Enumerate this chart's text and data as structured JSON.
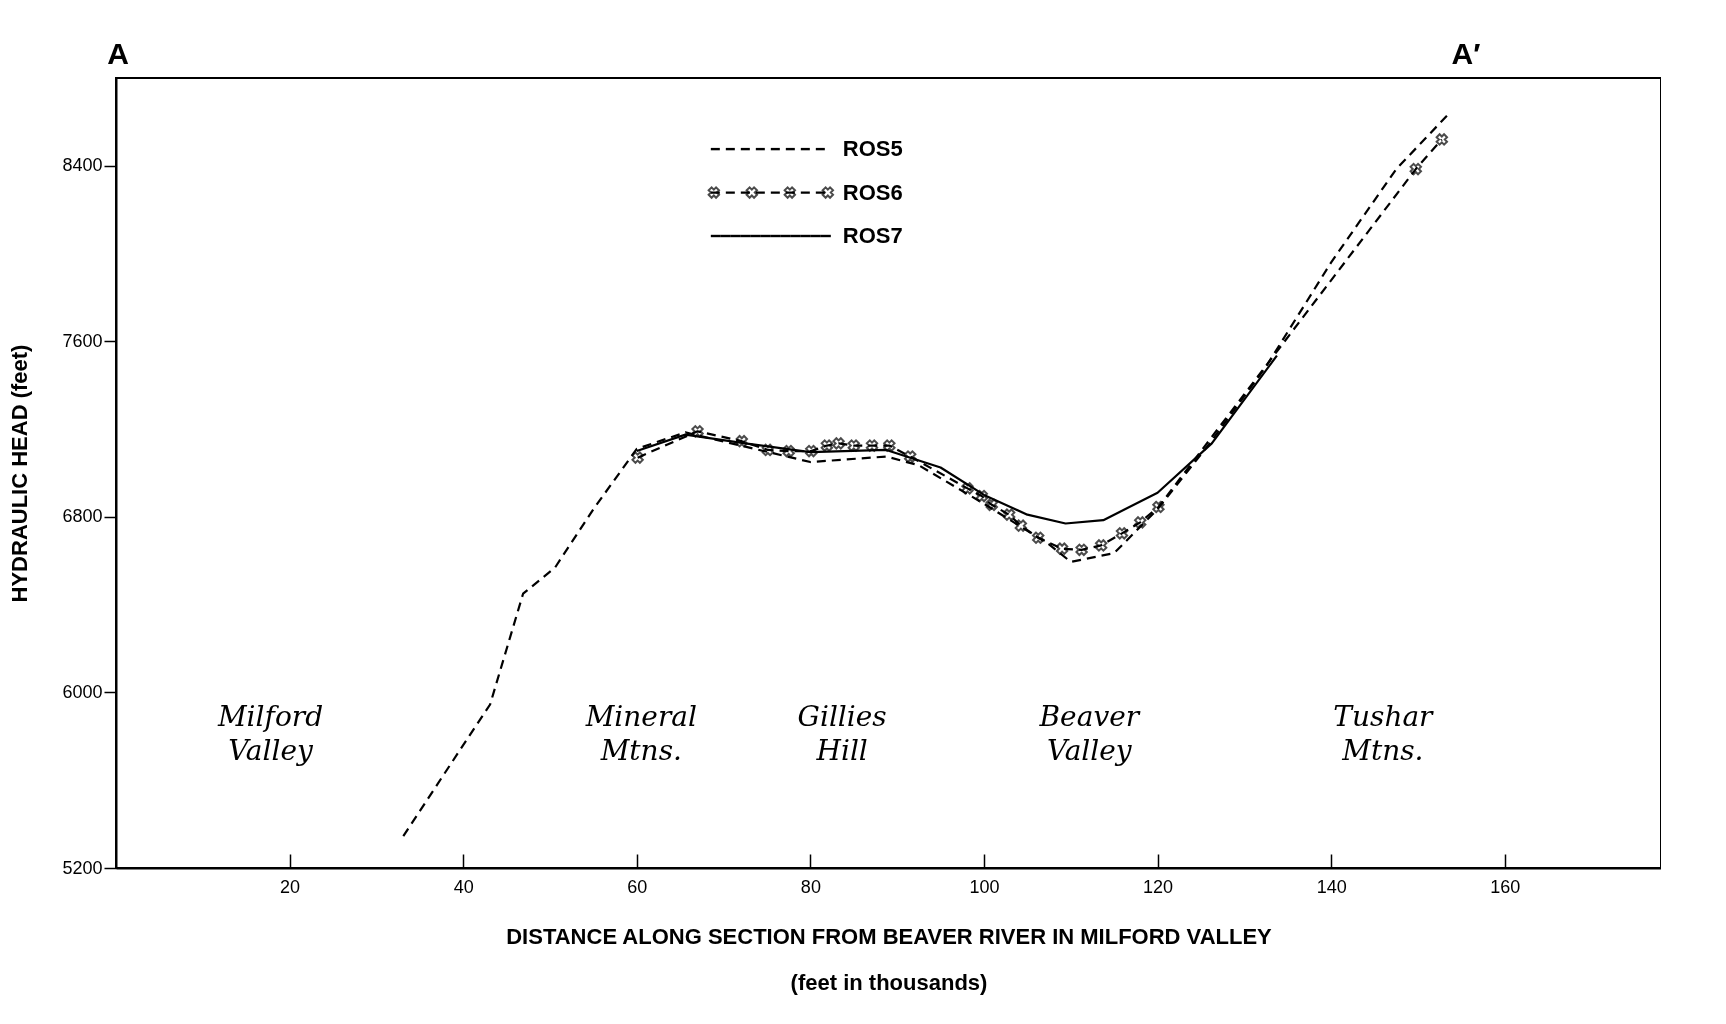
{
  "chart_data": {
    "type": "line",
    "xlabel": "DISTANCE ALONG SECTION FROM BEAVER  RIVER  IN MILFORD VALLEY\n(feet in thousands)",
    "ylabel": "HYDRAULIC HEAD (feet)",
    "xlim": [
      0,
      178
    ],
    "ylim": [
      5200,
      8800
    ],
    "xticks": [
      20,
      40,
      60,
      80,
      100,
      120,
      140,
      160
    ],
    "yticks": [
      5200,
      6000,
      6800,
      7600,
      8400
    ],
    "grid": false,
    "legend": "top",
    "annotations": [
      "A",
      "A′",
      "Milford\nValley",
      "Mineral\nMtns.",
      "Gillies\nHill",
      "Beaver\nValley",
      "Tushar\nMtns."
    ],
    "series": [
      {
        "name": "ROS5",
        "color": "#000000",
        "line_style": "dashed",
        "marker": "none",
        "x": [
          33.1,
          37.5,
          43.1,
          46.9,
          50.6,
          55,
          60,
          65.6,
          72.5,
          80,
          88.75,
          92.5,
          100,
          107.5,
          110,
          115,
          120,
          126,
          132.5,
          140,
          147.5,
          153.5
        ],
        "values": [
          5345,
          5610,
          5945,
          6450,
          6570,
          6835,
          7110,
          7185,
          7120,
          7050,
          7075,
          7035,
          6860,
          6675,
          6595,
          6635,
          6835,
          7135,
          7485,
          7960,
          8385,
          8635
        ]
      },
      {
        "name": "ROS6",
        "color": "#000000",
        "line_style": "dashed",
        "marker": "cross",
        "x": [
          60.1,
          67,
          72.1,
          75.1,
          77.5,
          80.1,
          81.9,
          83.25,
          85,
          87.1,
          89.1,
          91.5,
          98.1,
          99.75,
          100.9,
          102.9,
          104.25,
          106.25,
          109,
          111.25,
          113.5,
          115.9,
          118,
          120.1,
          149.75,
          152.75
        ],
        "values": [
          7070,
          7190,
          7145,
          7105,
          7100,
          7100,
          7125,
          7135,
          7125,
          7125,
          7125,
          7075,
          6930,
          6895,
          6855,
          6810,
          6760,
          6705,
          6655,
          6650,
          6670,
          6725,
          6775,
          6845,
          8385,
          8520
        ]
      },
      {
        "name": "ROS7",
        "color": "#000000",
        "line_style": "solid",
        "marker": "none",
        "x": [
          60,
          65.6,
          72.5,
          80,
          88.75,
          95,
          100,
          105,
          109.4,
          113.75,
          120,
          126.25,
          133.75
        ],
        "values": [
          7100,
          7175,
          7135,
          7095,
          7105,
          7025,
          6900,
          6810,
          6770,
          6785,
          6910,
          7135,
          7535
        ]
      }
    ]
  }
}
